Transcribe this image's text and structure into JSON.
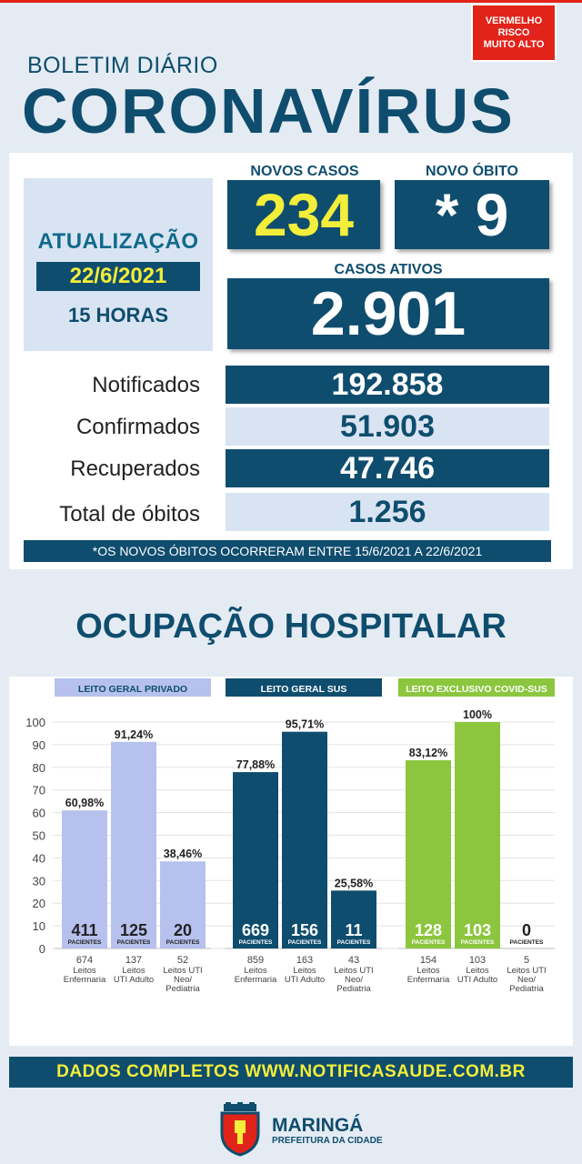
{
  "header": {
    "risk_badge": "VERMELHO\nRISCO\nMUITO ALTO",
    "subtitle": "BOLETIM DIÁRIO",
    "title": "CORONAVÍRUS"
  },
  "update": {
    "label": "ATUALIZAÇÃO",
    "date": "22/6/2021",
    "time": "15 HORAS"
  },
  "highlights": {
    "new_cases_label": "NOVOS CASOS",
    "new_cases": "234",
    "new_death_label": "NOVO ÓBITO",
    "new_death": "* 9",
    "active_label": "CASOS ATIVOS",
    "active": "2.901"
  },
  "stats": [
    {
      "label": "Notificados",
      "value": "192.858"
    },
    {
      "label": "Confirmados",
      "value": "51.903"
    },
    {
      "label": "Recuperados",
      "value": "47.746"
    },
    {
      "label": "Total de óbitos",
      "value": "1.256"
    }
  ],
  "note": "*OS NOVOS ÓBITOS OCORRERAM ENTRE 15/6/2021 A 22/6/2021",
  "hospital_title": "OCUPAÇÃO HOSPITALAR",
  "chart_data": {
    "type": "bar",
    "ylim": [
      0,
      100
    ],
    "yticks": [
      "0",
      "10",
      "20",
      "30",
      "40",
      "50",
      "60",
      "70",
      "80",
      "90",
      "100"
    ],
    "groups": [
      {
        "name": "LEITO GERAL PRIVADO",
        "color": "#b6c1ee",
        "header_color": "#b6c1ee",
        "bars": [
          {
            "value": 60.98,
            "label": "60,98%",
            "patients": "411",
            "beds": "674",
            "desc": "Leitos\nEnfermaria"
          },
          {
            "value": 91.24,
            "label": "91,24%",
            "patients": "125",
            "beds": "137",
            "desc": "Leitos\nUTI Adulto"
          },
          {
            "value": 38.46,
            "label": "38,46%",
            "patients": "20",
            "beds": "52",
            "desc": "Leitos UTI\nNeo/\nPediatria"
          }
        ]
      },
      {
        "name": "LEITO GERAL SUS",
        "color": "#0f4d6e",
        "header_color": "#0f4d6e",
        "bars": [
          {
            "value": 77.88,
            "label": "77,88%",
            "patients": "669",
            "beds": "859",
            "desc": "Leitos\nEnfermaria"
          },
          {
            "value": 95.71,
            "label": "95,71%",
            "patients": "156",
            "beds": "163",
            "desc": "Leitos\nUTI Adulto"
          },
          {
            "value": 25.58,
            "label": "25,58%",
            "patients": "11",
            "beds": "43",
            "desc": "Leitos UTI\nNeo/\nPediatria"
          }
        ]
      },
      {
        "name": "LEITO EXCLUSIVO COVID-SUS",
        "color": "#8cc63f",
        "header_color": "#8cc63f",
        "bars": [
          {
            "value": 83.12,
            "label": "83,12%",
            "patients": "128",
            "beds": "154",
            "desc": "Leitos\nEnfermaria"
          },
          {
            "value": 100,
            "label": "100%",
            "patients": "103",
            "beds": "103",
            "desc": "Leitos\nUTI Adulto"
          },
          {
            "value": 0,
            "label": "",
            "patients": "0",
            "beds": "5",
            "desc": "Leitos UTI\nNeo/\nPediatria"
          }
        ]
      }
    ],
    "patients_caption": "PACIENTES"
  },
  "footer": "DADOS COMPLETOS  WWW.NOTIFICASAUDE.COM.BR",
  "brand": {
    "city": "MARINGÁ",
    "tagline": "PREFEITURA DA CIDADE"
  }
}
